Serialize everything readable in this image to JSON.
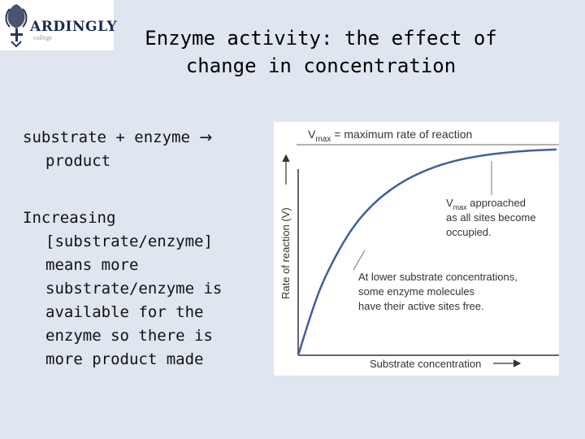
{
  "logo": {
    "name": "ARDINGLY",
    "tagline": "college"
  },
  "title": {
    "line1": "Enzyme activity: the effect of",
    "line2": "change in concentration"
  },
  "body": {
    "equation": {
      "lhs": "substrate + enzyme",
      "arrow": "→",
      "rhs": "product"
    },
    "explanation": [
      "Increasing",
      "[substrate/enzyme]",
      "means more",
      "substrate/enzyme is",
      "available for the",
      "enzyme so there is",
      "more product made"
    ]
  },
  "figure": {
    "vmax_symbol": "V",
    "vmax_subscript": "max",
    "vmax_definition": "= maximum rate of reaction",
    "annotation_upper": {
      "symbol": "V",
      "subscript": "max",
      "line1_rest": " approached",
      "line2": "as all sites become",
      "line3": "occupied."
    },
    "annotation_lower": [
      "At lower substrate concentrations,",
      "some enzyme molecules",
      "have their active sites free."
    ],
    "ylabel": "Rate of reaction (V)",
    "xlabel": "Substrate concentration"
  },
  "chart_data": {
    "type": "line",
    "title": "",
    "xlabel": "Substrate concentration",
    "ylabel": "Rate of reaction (V)",
    "series": [
      {
        "x": [
          0,
          0.05,
          0.1,
          0.2,
          0.3,
          0.4,
          0.5,
          0.6,
          0.7,
          0.8,
          0.9,
          1.0
        ],
        "values": [
          0,
          0.2,
          0.37,
          0.6,
          0.74,
          0.83,
          0.89,
          0.93,
          0.955,
          0.97,
          0.98,
          0.985
        ]
      }
    ],
    "reference_lines": [
      {
        "axis": "y",
        "value": 1.0,
        "label": "Vmax"
      }
    ],
    "colors": {
      "curve": "#3d5fa0",
      "vmax_line": "#666666",
      "axes": "#333333"
    }
  }
}
